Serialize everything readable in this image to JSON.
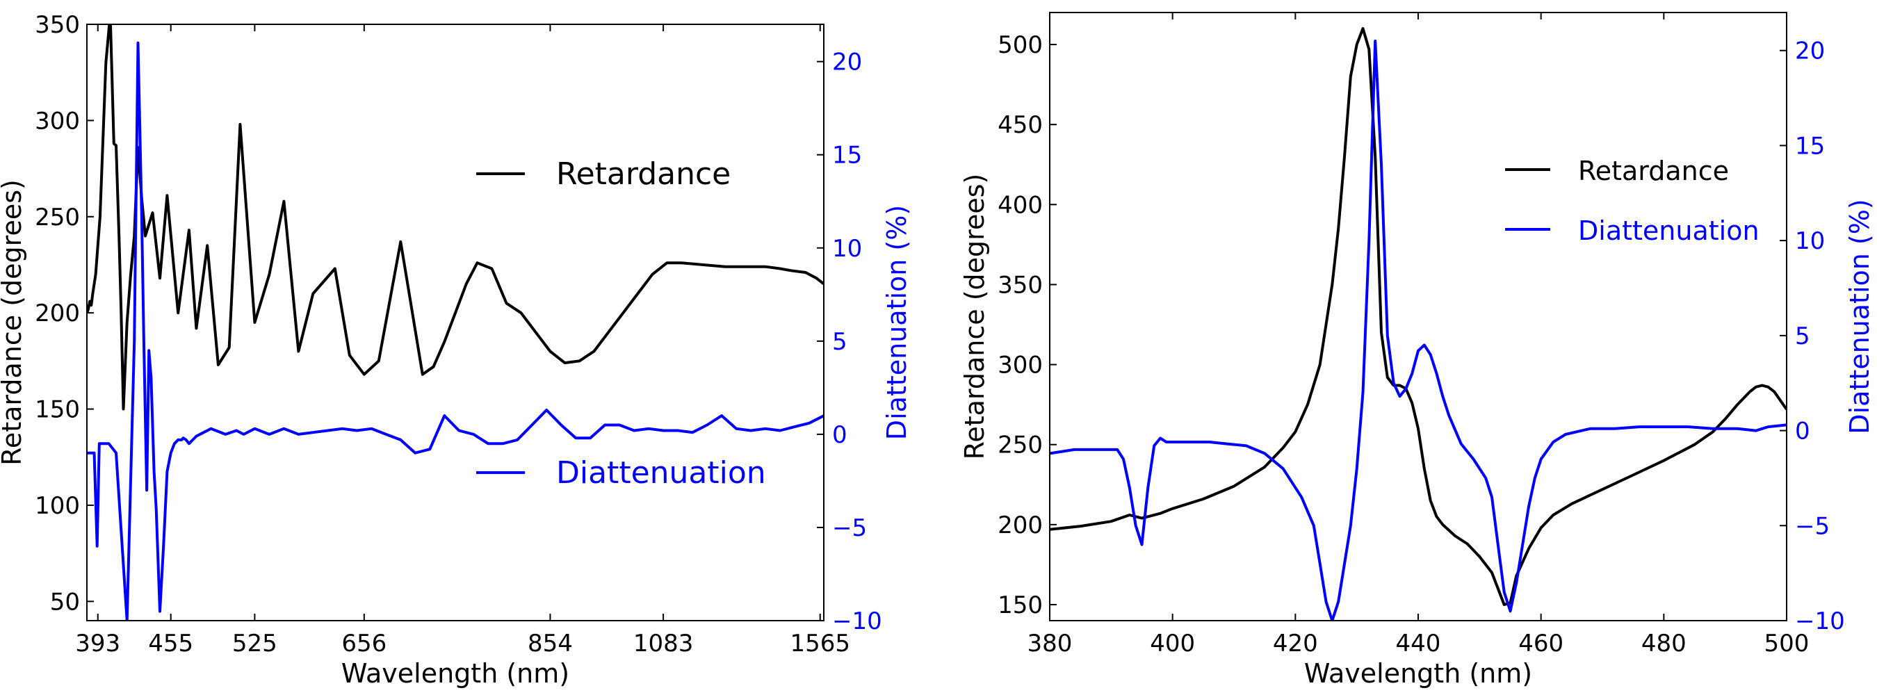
{
  "chart_data": [
    {
      "type": "line",
      "xlabel": "Wavelength (nm)",
      "ylabel_left": "Retardance (degrees)",
      "ylabel_right": "Diattenuation (%)",
      "x_tick_labels": [
        "393",
        "455",
        "525",
        "656",
        "854",
        "1083",
        "1565"
      ],
      "ylim_left": [
        40,
        350
      ],
      "yticks_left": [
        50,
        100,
        150,
        200,
        250,
        300,
        350
      ],
      "ylim_right": [
        -10,
        22
      ],
      "yticks_right": [
        -10,
        -5,
        0,
        5,
        10,
        15,
        20
      ],
      "ytick_labels_right": [
        "−10",
        "−5",
        "0",
        "5",
        "10",
        "15",
        "20"
      ],
      "legend": [
        "Retardance",
        "Diattenuation"
      ],
      "legend_position": "center-right",
      "colors": {
        "retardance": "#000000",
        "diattenuation": "#0000ff"
      },
      "series": [
        {
          "name": "Retardance",
          "axis": "left",
          "x": [
            0,
            0.02,
            0.04,
            0.06,
            0.08,
            0.12,
            0.18,
            0.26,
            0.32,
            0.37,
            0.4,
            0.44,
            0.47,
            0.5,
            0.55,
            0.6,
            0.62,
            0.65,
            0.7,
            0.75,
            0.8,
            0.9,
            1.0,
            1.1,
            1.25,
            1.4,
            1.5,
            1.65,
            1.8,
            1.95,
            2.1,
            2.3,
            2.5,
            2.7,
            2.9,
            3.1,
            3.4,
            3.6,
            3.8,
            4.0,
            4.3,
            4.6,
            4.75,
            4.9,
            5.05,
            5.2,
            5.35,
            5.55,
            5.75,
            5.95,
            6.15,
            6.35,
            6.55,
            6.75,
            6.95,
            7.15,
            7.35,
            7.55,
            7.75,
            7.95,
            8.15,
            8.45,
            8.75,
            9.05,
            9.3,
            9.5,
            9.65,
            9.85,
            10.0,
            10.1
          ],
          "y": [
            200,
            202,
            206,
            204,
            210,
            220,
            250,
            330,
            355,
            288,
            287,
            240,
            200,
            150,
            195,
            220,
            228,
            240,
            286,
            260,
            240,
            252,
            218,
            261,
            200,
            243,
            192,
            235,
            173,
            182,
            298,
            195,
            220,
            258,
            180,
            210,
            223,
            178,
            168,
            175,
            237,
            168,
            172,
            185,
            200,
            215,
            226,
            223,
            205,
            200,
            190,
            180,
            174,
            175,
            180,
            190,
            200,
            210,
            220,
            226,
            226,
            225,
            224,
            224,
            224,
            223,
            222,
            221,
            218,
            215
          ]
        },
        {
          "name": "Diattenuation",
          "axis": "right",
          "x": [
            0,
            0.05,
            0.1,
            0.14,
            0.17,
            0.2,
            0.3,
            0.4,
            0.55,
            0.65,
            0.7,
            0.75,
            0.78,
            0.82,
            0.85,
            0.88,
            0.92,
            0.95,
            1.0,
            1.05,
            1.1,
            1.15,
            1.2,
            1.25,
            1.3,
            1.32,
            1.36,
            1.4,
            1.5,
            1.7,
            1.9,
            2.05,
            2.15,
            2.3,
            2.5,
            2.7,
            2.9,
            3.1,
            3.3,
            3.5,
            3.7,
            3.9,
            4.1,
            4.3,
            4.5,
            4.7,
            4.9,
            5.1,
            5.3,
            5.5,
            5.7,
            5.9,
            6.1,
            6.3,
            6.5,
            6.7,
            6.9,
            7.1,
            7.3,
            7.5,
            7.7,
            7.9,
            8.1,
            8.3,
            8.5,
            8.7,
            8.9,
            9.1,
            9.3,
            9.5,
            9.7,
            9.9,
            10.1
          ],
          "y": [
            -1,
            -1,
            -1,
            -6,
            -0.5,
            -0.5,
            -0.5,
            -1,
            -10,
            5,
            21,
            12,
            5,
            -3,
            4.5,
            3,
            -2,
            -4,
            -9.5,
            -6,
            -2,
            -1,
            -0.5,
            -0.3,
            -0.3,
            -0.2,
            -0.3,
            -0.5,
            -0.1,
            0.3,
            0,
            0.2,
            0,
            0.3,
            0,
            0.3,
            0,
            0.1,
            0.2,
            0.3,
            0.2,
            0.3,
            0,
            -0.3,
            -1,
            -0.8,
            1,
            0.2,
            0,
            -0.5,
            -0.5,
            -0.3,
            0.5,
            1.3,
            0.5,
            -0.2,
            -0.2,
            0.5,
            0.5,
            0.2,
            0.3,
            0.2,
            0.2,
            0.1,
            0.5,
            1,
            0.3,
            0.2,
            0.3,
            0.2,
            0.4,
            0.6,
            1
          ]
        }
      ]
    },
    {
      "type": "line",
      "xlabel": "Wavelength (nm)",
      "ylabel_left": "Retardance (degrees)",
      "ylabel_right": "Diattenuation (%)",
      "xlim": [
        380,
        500
      ],
      "xticks": [
        380,
        400,
        420,
        440,
        460,
        480,
        500
      ],
      "ylim_left": [
        140,
        520
      ],
      "yticks_left": [
        150,
        200,
        250,
        300,
        350,
        400,
        450,
        500
      ],
      "ylim_right": [
        -10,
        22
      ],
      "yticks_right": [
        -10,
        -5,
        0,
        5,
        10,
        15,
        20
      ],
      "ytick_labels_right": [
        "−10",
        "−5",
        "0",
        "5",
        "10",
        "15",
        "20"
      ],
      "legend": [
        "Retardance",
        "Diattenuation"
      ],
      "legend_position": "center-right",
      "colors": {
        "retardance": "#000000",
        "diattenuation": "#0000ff"
      },
      "series": [
        {
          "name": "Retardance",
          "axis": "left",
          "x": [
            380,
            385,
            390,
            393,
            395,
            398,
            400,
            405,
            410,
            415,
            418,
            420,
            422,
            424,
            426,
            427,
            428,
            429,
            430,
            431,
            432,
            433,
            434,
            435,
            436,
            437,
            438,
            439,
            440,
            441,
            442,
            443,
            444,
            446,
            448,
            450,
            452,
            454,
            455,
            456,
            458,
            460,
            462,
            465,
            470,
            475,
            480,
            485,
            488,
            490,
            492,
            494,
            495,
            496,
            497,
            498,
            500
          ],
          "y": [
            197,
            199,
            202,
            206,
            204,
            207,
            210,
            216,
            224,
            236,
            248,
            258,
            275,
            300,
            350,
            385,
            430,
            480,
            500,
            510,
            497,
            430,
            320,
            292,
            287,
            287,
            285,
            276,
            260,
            235,
            215,
            205,
            200,
            193,
            188,
            180,
            170,
            150,
            151,
            168,
            185,
            198,
            206,
            213,
            222,
            231,
            240,
            250,
            258,
            266,
            275,
            283,
            286,
            287,
            286,
            283,
            272
          ]
        },
        {
          "name": "Diattenuation",
          "axis": "right",
          "x": [
            380,
            384,
            388,
            391,
            392,
            393,
            394,
            395,
            396,
            397,
            398,
            399,
            400,
            403,
            406,
            409,
            412,
            415,
            418,
            421,
            423,
            424,
            425,
            426,
            427,
            428,
            429,
            430,
            431,
            432,
            433,
            434,
            435,
            436,
            437,
            438,
            439,
            440,
            441,
            442,
            443,
            444,
            445,
            447,
            449,
            451,
            452,
            453,
            454,
            455,
            456,
            457,
            458,
            459,
            460,
            462,
            464,
            468,
            472,
            476,
            480,
            484,
            488,
            492,
            495,
            497,
            500
          ],
          "y": [
            -1.2,
            -1,
            -1,
            -1,
            -1.5,
            -3,
            -5,
            -6,
            -3,
            -0.8,
            -0.4,
            -0.6,
            -0.6,
            -0.6,
            -0.6,
            -0.7,
            -0.8,
            -1.2,
            -2,
            -3.5,
            -5,
            -7,
            -9,
            -10,
            -9,
            -7,
            -5,
            -2,
            2,
            10,
            20.5,
            14,
            5,
            2.5,
            1.8,
            2.2,
            3,
            4.2,
            4.5,
            4,
            3,
            1.8,
            0.8,
            -0.7,
            -1.5,
            -2.5,
            -3.5,
            -6,
            -8.5,
            -9.5,
            -8,
            -6,
            -4,
            -2.5,
            -1.5,
            -0.6,
            -0.2,
            0.1,
            0.1,
            0.2,
            0.2,
            0.2,
            0.1,
            0.1,
            0,
            0.2,
            0.3
          ]
        }
      ]
    }
  ]
}
